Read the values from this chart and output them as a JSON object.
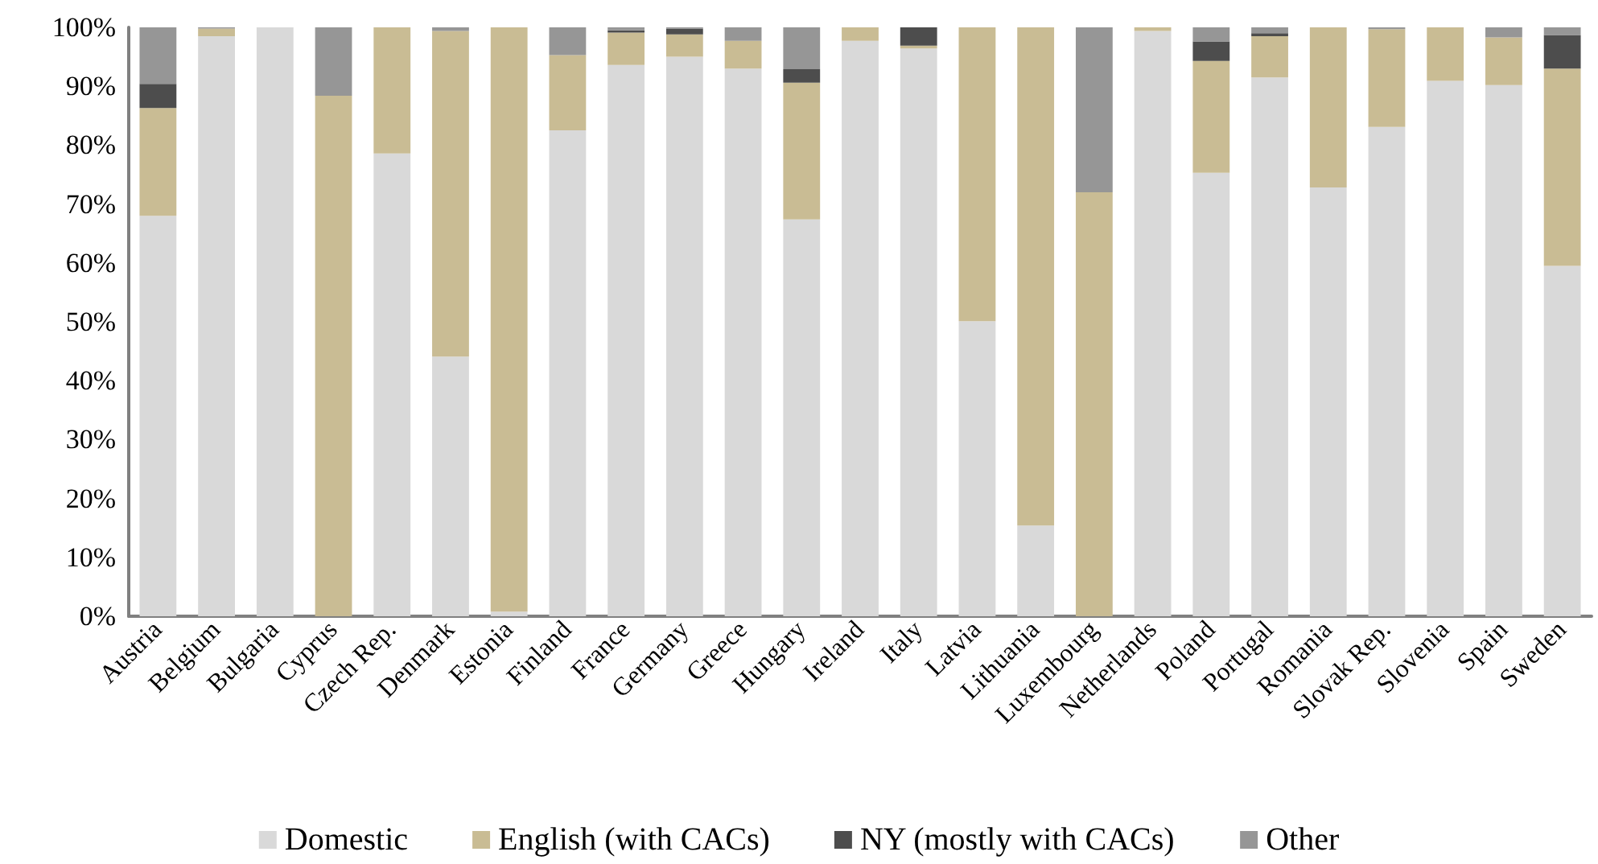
{
  "chart_data": {
    "type": "bar",
    "stacked": true,
    "categories": [
      "Austria",
      "Belgium",
      "Bulgaria",
      "Cyprus",
      "Czech Rep.",
      "Denmark",
      "Estonia",
      "Finland",
      "France",
      "Germany",
      "Greece",
      "Hungary",
      "Ireland",
      "Italy",
      "Latvia",
      "Lithuania",
      "Luxembourg",
      "Netherlands",
      "Poland",
      "Portugal",
      "Romania",
      "Slovak Rep.",
      "Slovenia",
      "Spain",
      "Sweden"
    ],
    "series": [
      {
        "name": "Domestic",
        "color": "#d9d9d9",
        "values": [
          68,
          98.5,
          100,
          0,
          78.6,
          44.1,
          0.8,
          82.5,
          93.6,
          95,
          93,
          67.4,
          97.7,
          96.4,
          50.1,
          15.4,
          0,
          99.4,
          75.3,
          91.5,
          72.8,
          83.1,
          90.9,
          90.2,
          59.5
        ]
      },
      {
        "name": "English (with CACs)",
        "color": "#c9bc94",
        "values": [
          18.3,
          1.3,
          0,
          88.4,
          21.4,
          55.3,
          99.2,
          12.8,
          5.5,
          3.8,
          4.7,
          23.2,
          2.3,
          0.5,
          49.9,
          84.6,
          72,
          0.6,
          19,
          7,
          27.2,
          16.6,
          9.1,
          8.1,
          33.5
        ]
      },
      {
        "name": "NY (mostly with CACs)",
        "color": "#4d4d4d",
        "values": [
          4.1,
          0,
          0,
          0,
          0,
          0,
          0,
          0,
          0.4,
          1,
          0,
          2.3,
          0,
          3.1,
          0,
          0,
          0,
          0,
          3.3,
          0.5,
          0,
          0,
          0,
          0,
          5.7
        ]
      },
      {
        "name": "Other",
        "color": "#969696",
        "values": [
          9.6,
          0.2,
          0,
          11.6,
          0,
          0.6,
          0,
          4.7,
          0.5,
          0.2,
          2.3,
          7.1,
          0,
          0,
          0,
          0,
          28,
          0,
          2.4,
          1,
          0,
          0.3,
          0,
          1.7,
          1.3
        ]
      }
    ],
    "ylim": [
      0,
      100
    ],
    "yticks": [
      {
        "value": 0,
        "label": "0%"
      },
      {
        "value": 10,
        "label": "10%"
      },
      {
        "value": 20,
        "label": "20%"
      },
      {
        "value": 30,
        "label": "30%"
      },
      {
        "value": 40,
        "label": "40%"
      },
      {
        "value": 50,
        "label": "50%"
      },
      {
        "value": 60,
        "label": "60%"
      },
      {
        "value": 70,
        "label": "70%"
      },
      {
        "value": 80,
        "label": "80%"
      },
      {
        "value": 90,
        "label": "90%"
      },
      {
        "value": 100,
        "label": "100%"
      }
    ],
    "grid": false,
    "legend": "bottom"
  }
}
